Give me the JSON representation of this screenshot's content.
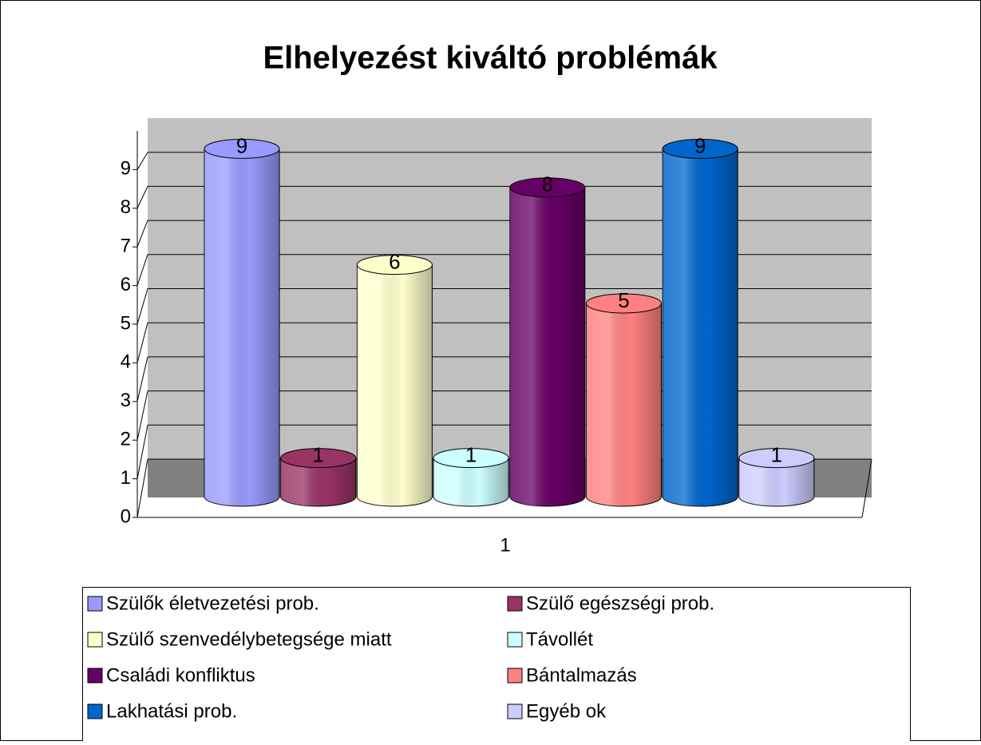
{
  "chart_data": {
    "type": "bar",
    "title": "Elhelyezést kiváltó problémák",
    "categories": [
      "1"
    ],
    "series": [
      {
        "name": "Szülők életvezetési prob.",
        "color": "#9999ff",
        "values": [
          9
        ]
      },
      {
        "name": "Szülő egészségi prob.",
        "color": "#993366",
        "values": [
          1
        ]
      },
      {
        "name": "Szülő szenvedélybetegsége miatt",
        "color": "#ffffcc",
        "values": [
          6
        ]
      },
      {
        "name": "Távollét",
        "color": "#ccffff",
        "values": [
          1
        ]
      },
      {
        "name": "Családi konfliktus",
        "color": "#660066",
        "values": [
          8
        ]
      },
      {
        "name": "Bántalmazás",
        "color": "#ff8080",
        "values": [
          5
        ]
      },
      {
        "name": "Lakhatási prob.",
        "color": "#0066cc",
        "values": [
          9
        ]
      },
      {
        "name": "Egyéb ok",
        "color": "#ccccff",
        "values": [
          1
        ]
      }
    ],
    "ylim": [
      0,
      10
    ],
    "yticks": [
      0,
      1,
      2,
      3,
      4,
      5,
      6,
      7,
      8,
      9
    ],
    "grid": true,
    "legend": "bottom"
  }
}
